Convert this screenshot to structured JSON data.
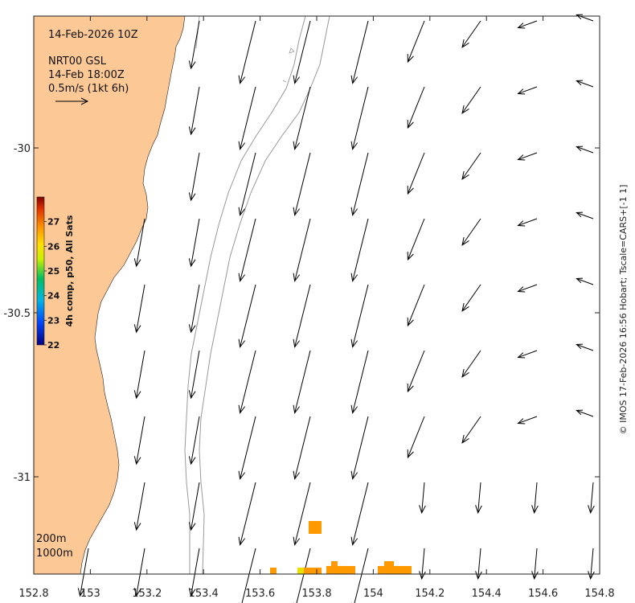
{
  "map": {
    "date_label": "14-Feb-2026 10Z",
    "product_label": "NRT00 GSL",
    "time_label": "14-Feb 18:00Z",
    "scale_label": "0.5m/s (1kt 6h)",
    "depth_labels": [
      "200m",
      "1000m"
    ],
    "credit": "© IMOS 17-Feb-2026 16:56 Hobart; Tscale=CARS+[-1 1]",
    "x_ticks": [
      "152.8",
      "153",
      "153.2",
      "153.4",
      "153.6",
      "153.8",
      "154",
      "154.2",
      "154.4",
      "154.6",
      "154.8"
    ],
    "y_ticks": [
      "-30",
      "-30.5",
      "-31"
    ],
    "colors": {
      "land": "#fcc896",
      "ocean": "#ffffff",
      "arrow": "#000000",
      "isobath": "#999999"
    }
  },
  "colorbar": {
    "label": "4h comp, p50, All Sats",
    "ticks": [
      "27",
      "26",
      "25",
      "24",
      "23",
      "22"
    ],
    "range": [
      22,
      28
    ]
  }
}
